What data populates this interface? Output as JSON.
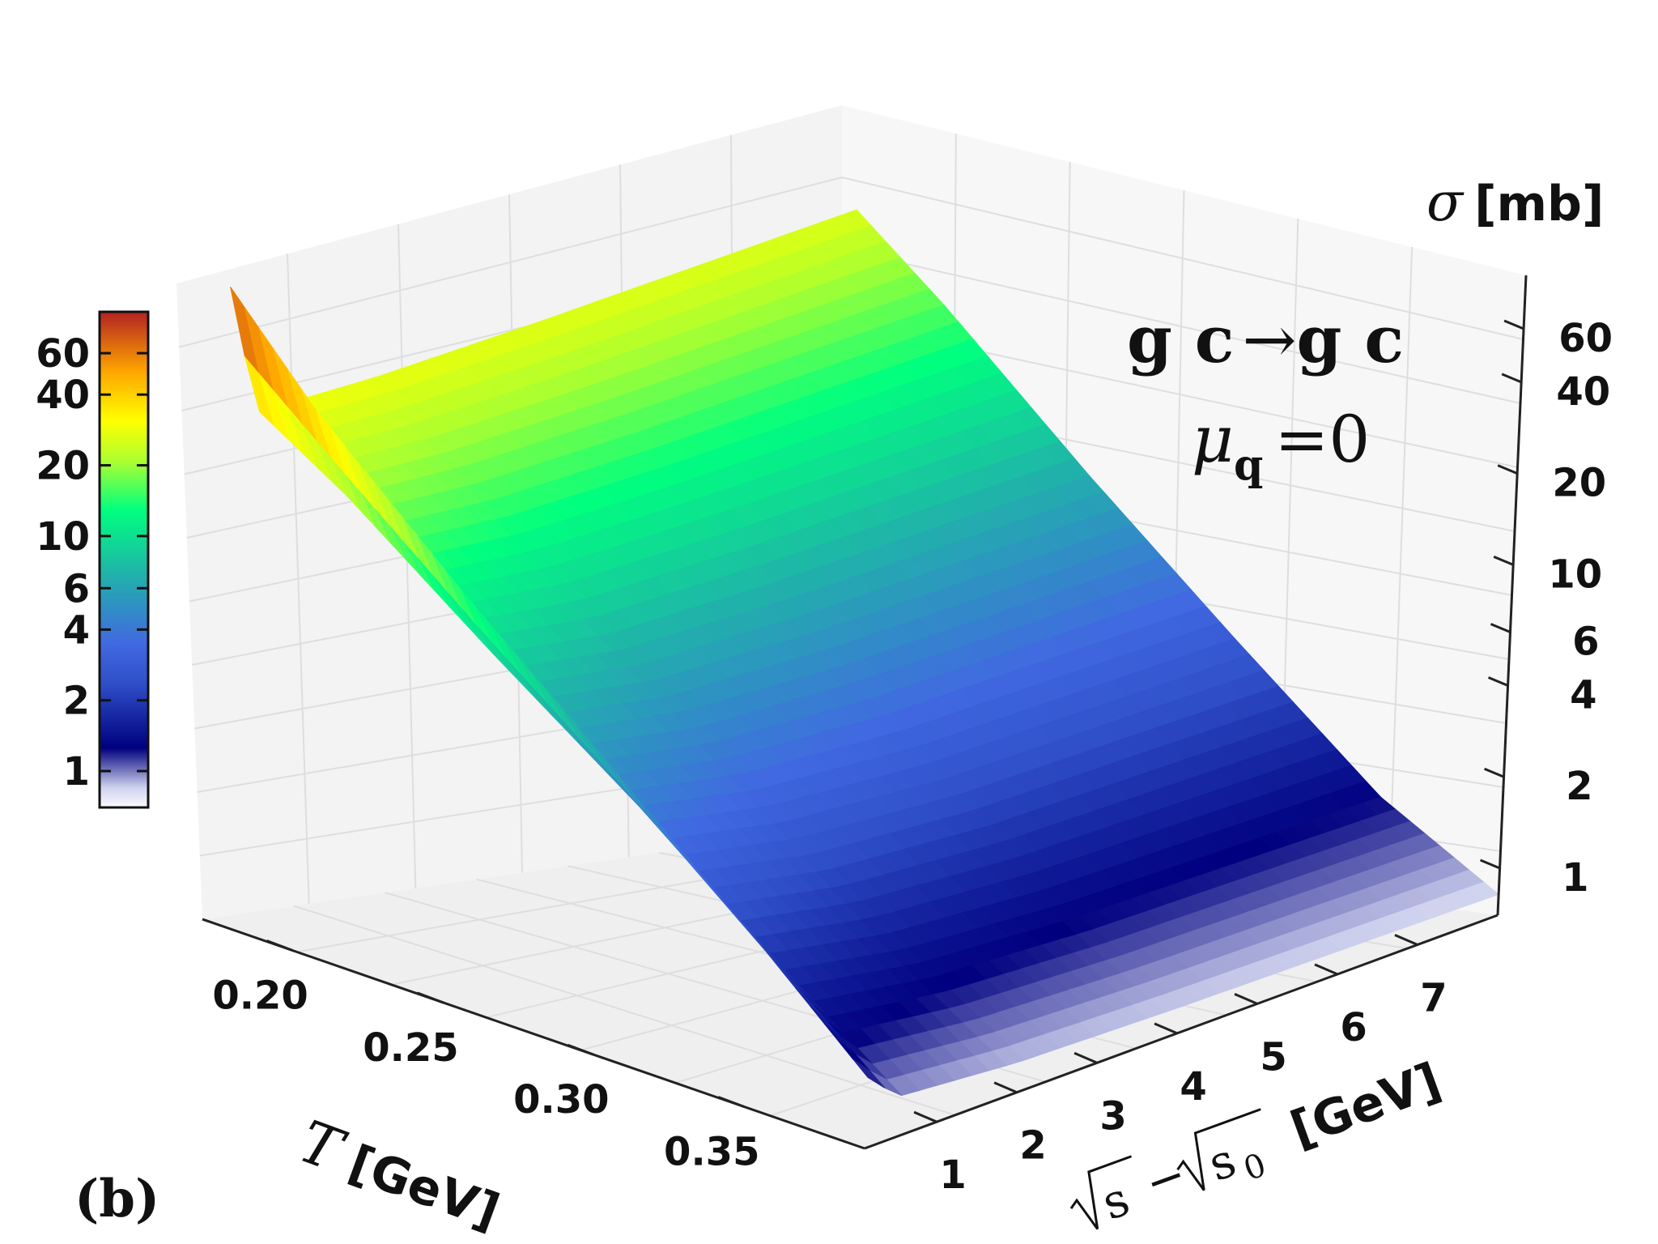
{
  "chart_data": {
    "type": "surface3d",
    "panel_label": "(b)",
    "process": {
      "left": "g c",
      "arrow": "→",
      "right": "g c"
    },
    "condition": {
      "symbol": "μ",
      "subscript": "q",
      "equals": "=0"
    },
    "x_axis": {
      "variable": "T",
      "unit": "[GeV]",
      "range": [
        0.17,
        0.39
      ],
      "ticks": [
        "0.20",
        "0.25",
        "0.30",
        "0.35"
      ],
      "tick_values": [
        0.2,
        0.25,
        0.3,
        0.35
      ]
    },
    "y_axis": {
      "variable_a": "s",
      "minus": "−",
      "variable_b": "s",
      "subscript_b": "0",
      "unit": "[GeV]",
      "range": [
        0.1,
        8
      ],
      "ticks": [
        "1",
        "2",
        "3",
        "4",
        "5",
        "6",
        "7"
      ],
      "tick_values": [
        1,
        2,
        3,
        4,
        5,
        6,
        7
      ]
    },
    "z_axis": {
      "variable": "σ",
      "unit": "[mb]",
      "scale": "log",
      "range": [
        0.7,
        90
      ],
      "ticks": [
        "1",
        "2",
        "4",
        "6",
        "10",
        "20",
        "40",
        "60"
      ],
      "tick_values": [
        1,
        2,
        4,
        6,
        10,
        20,
        40,
        60
      ]
    },
    "colorbar": {
      "ticks": [
        "1",
        "2",
        "4",
        "6",
        "10",
        "20",
        "40",
        "60"
      ],
      "tick_values": [
        1,
        2,
        4,
        6,
        10,
        20,
        40,
        60
      ],
      "range": [
        0.7,
        90
      ],
      "colormap_stops": [
        [
          "#fbfbfe",
          0.0
        ],
        [
          "#cfd2ee",
          0.04
        ],
        [
          "#00007f",
          0.12
        ],
        [
          "#2f4fc8",
          0.25
        ],
        [
          "#4169e1",
          0.33
        ],
        [
          "#20b2aa",
          0.47
        ],
        [
          "#00ff7f",
          0.6
        ],
        [
          "#adff2f",
          0.7
        ],
        [
          "#ffff00",
          0.78
        ],
        [
          "#ffa500",
          0.88
        ],
        [
          "#b22222",
          1.0
        ]
      ]
    },
    "surface_samples": {
      "T_values": [
        0.17,
        0.2,
        0.25,
        0.3,
        0.35,
        0.39
      ],
      "sqrt_s_minus_sqrt_s0_values": [
        0.1,
        0.5,
        2,
        4,
        8
      ],
      "sigma_mb": [
        [
          85,
          30,
          28,
          27,
          26
        ],
        [
          42,
          20,
          18,
          17,
          16
        ],
        [
          16,
          9,
          7.5,
          7,
          6.5
        ],
        [
          6.5,
          4.2,
          3.4,
          3,
          2.8
        ],
        [
          2.6,
          1.8,
          1.5,
          1.35,
          1.25
        ],
        [
          1.2,
          0.95,
          0.88,
          0.85,
          0.82
        ]
      ]
    }
  }
}
